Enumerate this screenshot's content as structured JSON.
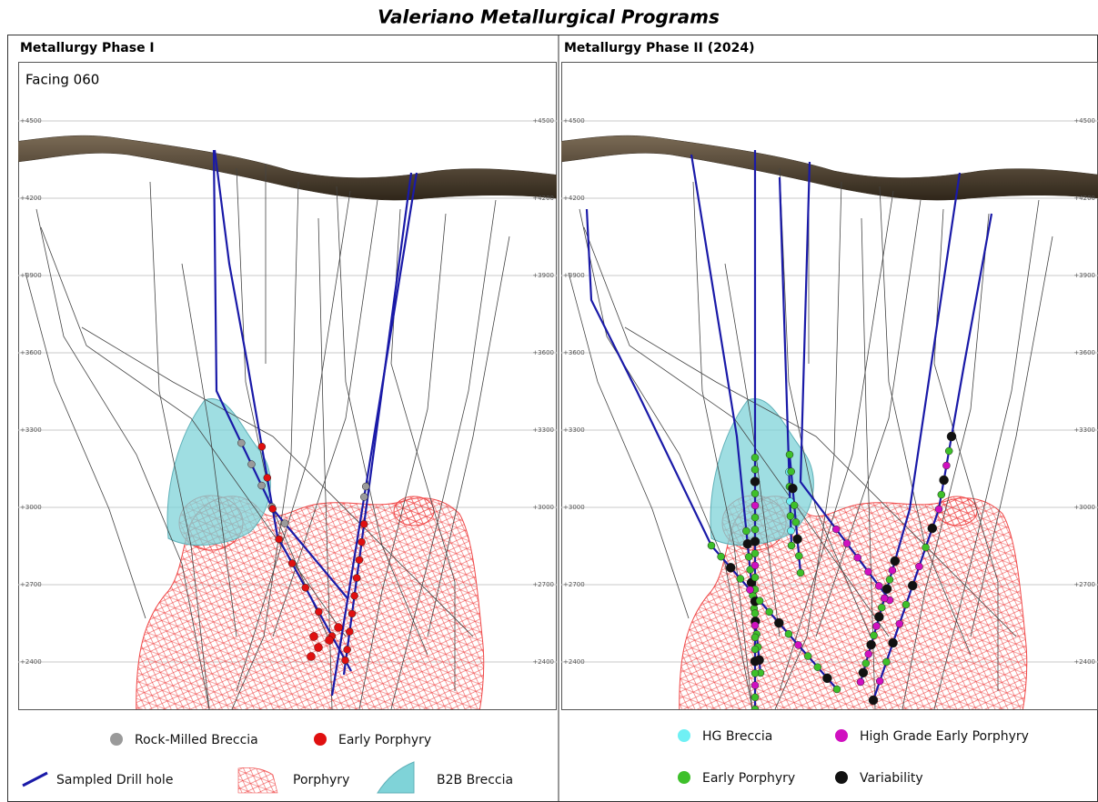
{
  "title": "Valeriano Metallurgical Programs",
  "panels": [
    {
      "title": "Metallurgy Phase I",
      "facing": "Facing 060"
    },
    {
      "title": "Metallurgy Phase II (2024)"
    }
  ],
  "elevations": [
    "+4500",
    "+4200",
    "+3900",
    "+3600",
    "+3300",
    "+3000",
    "+2700",
    "+2400"
  ],
  "legend_left": [
    {
      "label": "Rock-Milled Breccia"
    },
    {
      "label": "Early Porphyry"
    },
    {
      "label": "Sampled Drill hole"
    },
    {
      "label": "Porphyry"
    },
    {
      "label": "B2B Breccia"
    }
  ],
  "legend_right": [
    {
      "label": "HG Breccia"
    },
    {
      "label": "High Grade Early Porphyry"
    },
    {
      "label": "Early Porphyry"
    },
    {
      "label": "Variability"
    }
  ]
}
